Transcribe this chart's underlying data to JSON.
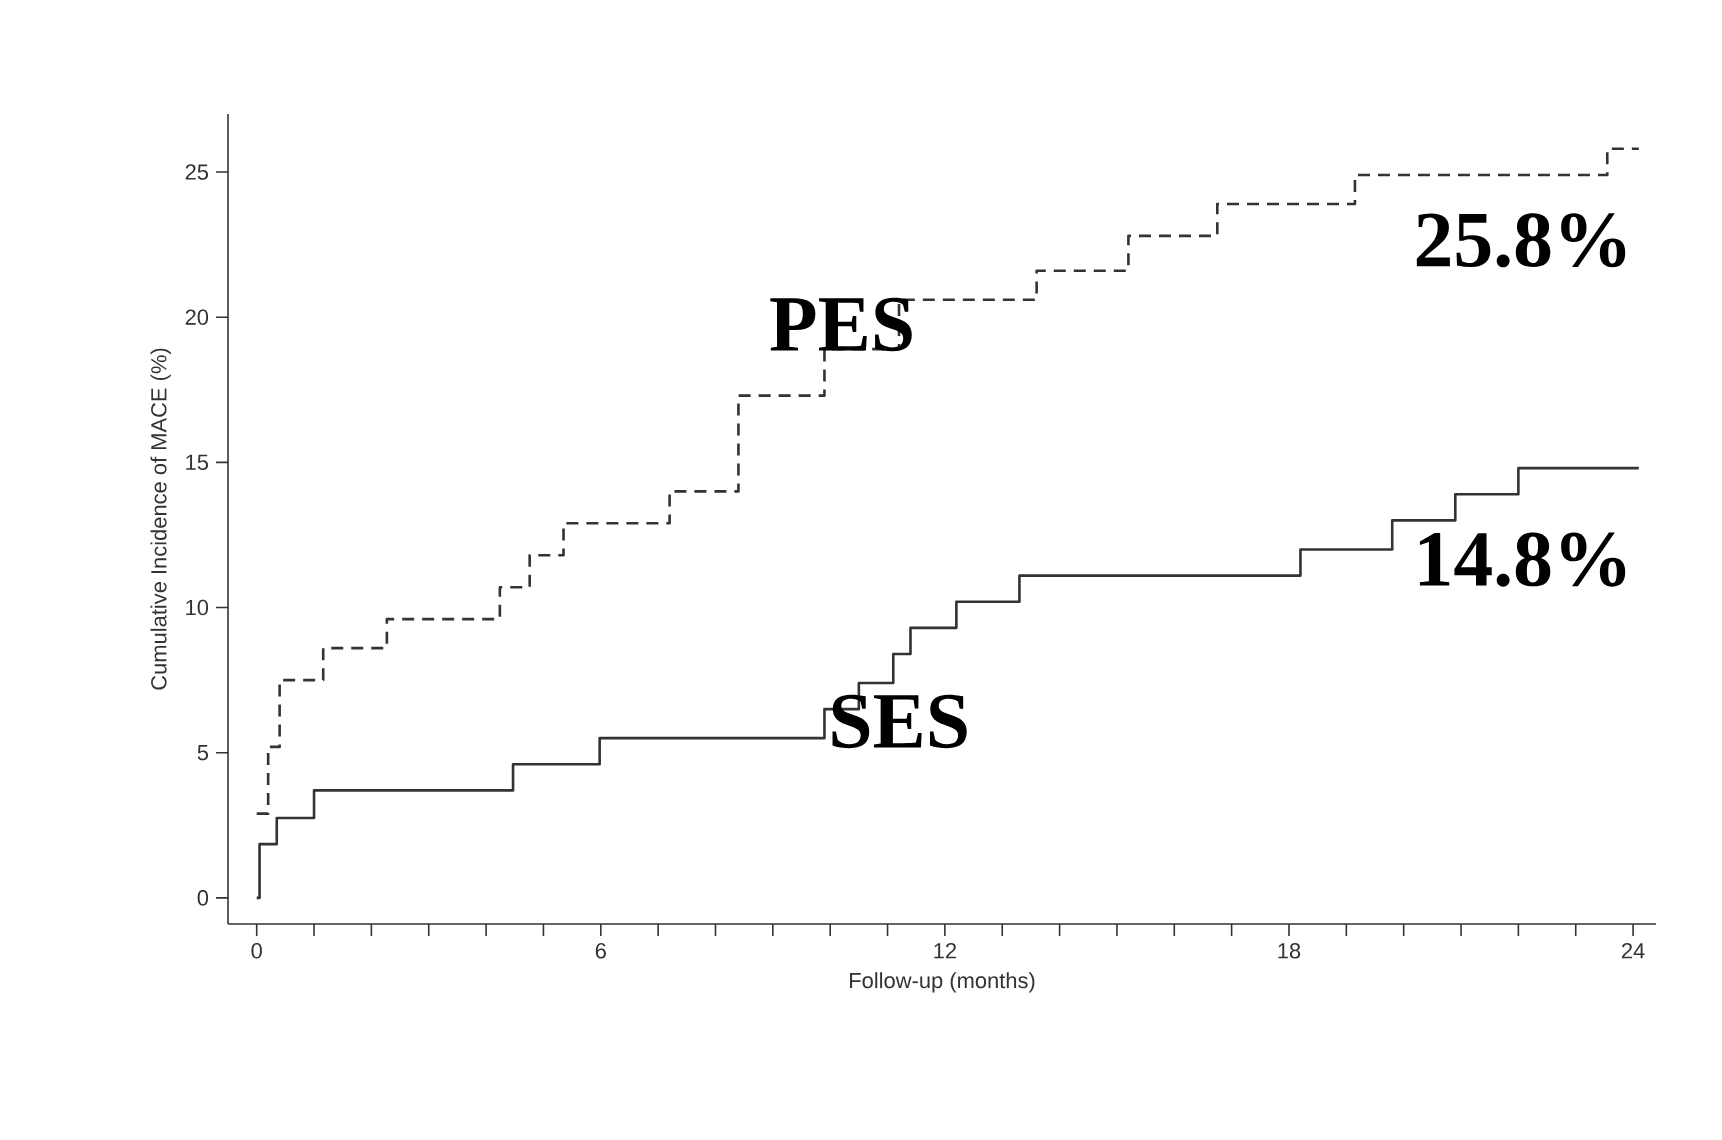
{
  "chart_data": {
    "type": "step",
    "xlabel": "Follow-up (months)",
    "ylabel": "Cumulative Incidence of MACE (%)",
    "xlim": [
      -0.5,
      24.4
    ],
    "ylim": [
      -0.9,
      27
    ],
    "xticks": [
      0,
      6,
      12,
      18,
      24
    ],
    "yticks": [
      0,
      5,
      10,
      15,
      20,
      25
    ],
    "grid": false,
    "series": [
      {
        "name": "PES",
        "color": "#333333",
        "line_style": "dashed",
        "x": [
          0,
          0.2,
          0.4,
          1.16,
          2.27,
          4.24,
          4.76,
          5.35,
          7.2,
          8.4,
          9.9,
          11.2,
          13.6,
          15.2,
          16.75,
          19.15,
          23.55,
          24.1
        ],
        "values": [
          2.9,
          5.2,
          7.5,
          8.6,
          9.6,
          10.7,
          11.8,
          12.9,
          14.0,
          17.3,
          18.9,
          20.6,
          21.6,
          22.8,
          23.9,
          24.9,
          25.8,
          25.8
        ]
      },
      {
        "name": "SES",
        "color": "#333333",
        "line_style": "solid",
        "x": [
          0,
          0.05,
          0.35,
          1.0,
          4.47,
          5.98,
          9.9,
          10.5,
          11.1,
          11.4,
          12.2,
          13.3,
          18.2,
          19.8,
          20.9,
          22.0,
          24.1
        ],
        "values": [
          0,
          1.85,
          2.75,
          3.7,
          4.6,
          5.5,
          6.5,
          7.4,
          8.4,
          9.3,
          10.2,
          11.1,
          12.0,
          13.0,
          13.9,
          14.8,
          14.8
        ]
      }
    ],
    "annotations": [
      {
        "text": "25.8%",
        "x": 24,
        "y": 25.8
      },
      {
        "text": "14.8%",
        "x": 24,
        "y": 14.8
      }
    ]
  }
}
